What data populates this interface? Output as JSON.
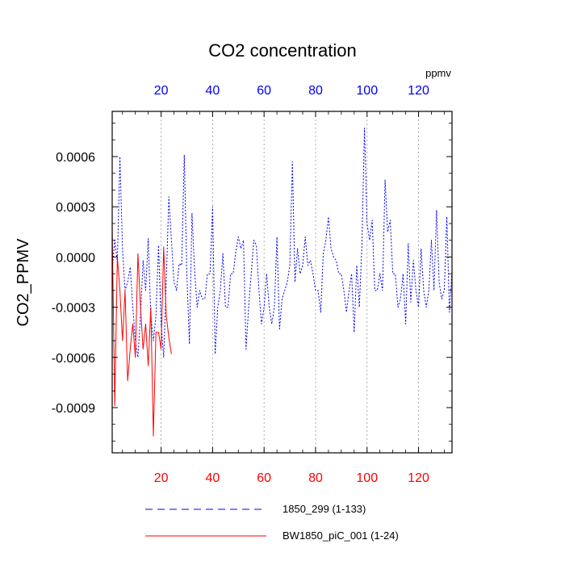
{
  "chart_data": {
    "type": "line",
    "title": "CO2 concentration",
    "ylabel": "CO2_PPMV",
    "xlabel": "",
    "top_axis_units": "ppmv",
    "xlim": [
      1,
      133
    ],
    "ylim": [
      -0.00117,
      0.00087
    ],
    "x_ticks": [
      20,
      40,
      60,
      80,
      100,
      120
    ],
    "x_tick_labels": [
      "20",
      "40",
      "60",
      "80",
      "100",
      "120"
    ],
    "top_tick_color": "#0000ff",
    "bottom_tick_color": "#ff0000",
    "y_ticks": [
      0.0006,
      0.0003,
      0.0,
      -0.0003,
      -0.0006,
      -0.0009
    ],
    "y_tick_labels": [
      "0.0006",
      "0.0003",
      "0.0000",
      "-0.0003",
      "-0.0006",
      "-0.0009"
    ],
    "grid": "vertical dotted at x ticks",
    "legend_position": "bottom",
    "series": [
      {
        "name": "1850_299 (1-133)",
        "color": "#0000ff",
        "style": "dashed",
        "x_start": 1,
        "values": [
          -8e-05,
          0.0001,
          -3e-05,
          0.0006,
          5e-05,
          -0.0002,
          -0.00015,
          -6e-05,
          -0.0003,
          -0.0005,
          -0.0006,
          -0.00035,
          -2e-05,
          -0.0002,
          0.00011,
          -0.00035,
          -0.0005,
          -0.00035,
          7e-05,
          -0.0004,
          -0.0006,
          -0.00015,
          0.00036,
          0.0001,
          -0.00015,
          -0.0002,
          -4e-05,
          -5e-05,
          0.00061,
          -0.0001,
          -0.00052,
          0.00026,
          -8e-05,
          -0.0003,
          -0.0002,
          -0.00025,
          -0.00025,
          -0.0001,
          -0.0001,
          0.0003,
          -0.00058,
          -0.0003,
          -0.0002,
          2e-05,
          -0.0003,
          -0.0003,
          -0.0001,
          -0.0001,
          3e-05,
          0.00012,
          5e-05,
          0.0001,
          -0.00055,
          -0.0003,
          -0.0001,
          0.0001,
          7e-05,
          -0.0002,
          -0.0004,
          -0.0003,
          -0.0001,
          -0.0003,
          -0.0004,
          -0.0003,
          0.00012,
          -0.00043,
          -0.00025,
          -0.0002,
          -0.00015,
          -5e-05,
          0.00057,
          -0.00015,
          5e-05,
          -0.0001,
          -5e-05,
          0.00012,
          -5e-05,
          -2e-05,
          -0.0001,
          -0.0002,
          -0.0002,
          -0.00033,
          2e-05,
          0.0001,
          0.00024,
          5e-05,
          0.0,
          -2e-05,
          -0.0001,
          -0.0001,
          -0.0002,
          -0.00033,
          -0.0002,
          -0.0001,
          -0.00045,
          -5e-05,
          -0.0003,
          7e-05,
          0.00077,
          0.0002,
          0.0001,
          0.00022,
          -0.0002,
          -0.0002,
          -0.0001,
          -0.0002,
          0.00046,
          0.00015,
          0.00022,
          -0.0001,
          -0.0001,
          -0.0003,
          -0.00025,
          -0.0001,
          -0.0004,
          8e-05,
          -0.00027,
          -2e-05,
          -0.0002,
          -0.0003,
          5e-05,
          -0.0002,
          -0.0003,
          -0.0002,
          0.0001,
          -0.0002,
          0.00028,
          -0.00015,
          -0.00025,
          -0.0002,
          0.00024,
          -0.00033,
          -8e-05
        ]
      },
      {
        "name": "BW1850_piC_001 (1-24)",
        "color": "#ff0000",
        "style": "solid",
        "x_start": 1,
        "values": [
          0.00018,
          -0.00089,
          0.0,
          -0.0002,
          -0.0005,
          -0.0002,
          -0.00074,
          -0.00055,
          -0.0004,
          -0.0006,
          2e-05,
          -0.0003,
          -0.00055,
          -0.0004,
          -0.00065,
          -0.0003,
          -0.00107,
          -0.00045,
          -0.00045,
          -0.00055,
          6e-05,
          -0.00035,
          -0.00048,
          -0.00058
        ]
      }
    ]
  }
}
